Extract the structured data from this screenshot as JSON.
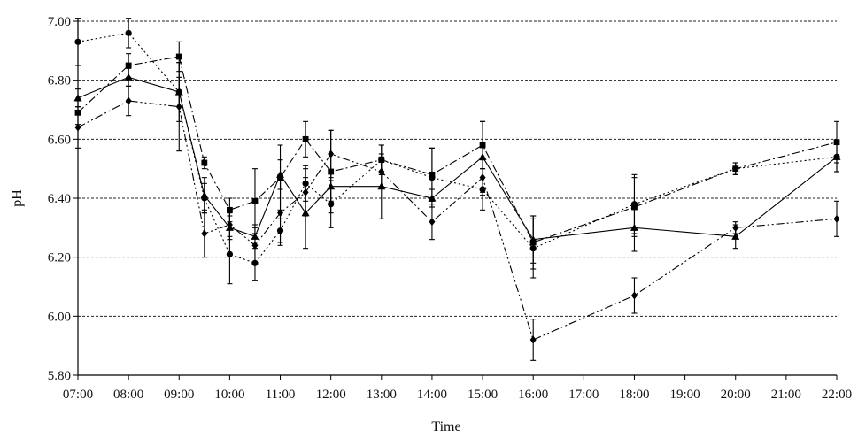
{
  "chart_data": {
    "type": "line",
    "title": "",
    "xlabel": "Time",
    "ylabel": "pH",
    "ylim": [
      5.8,
      7.0
    ],
    "yticks": [
      "5.80",
      "6.00",
      "6.20",
      "6.40",
      "6.60",
      "6.80",
      "7.00"
    ],
    "x_labels": [
      "07:00",
      "08:00",
      "09:00",
      "10:00",
      "11:00",
      "12:00",
      "13:00",
      "14:00",
      "15:00",
      "16:00",
      "17:00",
      "18:00",
      "19:00",
      "20:00",
      "21:00",
      "22:00"
    ],
    "grid": "horizontal dashed",
    "legend": "none",
    "series": [
      {
        "marker": "triangle",
        "line": "solid",
        "x": [
          "07:00",
          "08:00",
          "09:00",
          "09:30",
          "10:00",
          "10:30",
          "11:00",
          "11:30",
          "12:00",
          "13:00",
          "14:00",
          "15:00",
          "16:00",
          "18:00",
          "20:00",
          "22:00"
        ],
        "y": [
          6.74,
          6.81,
          6.76,
          6.41,
          6.3,
          6.27,
          6.48,
          6.35,
          6.44,
          6.44,
          6.4,
          6.54,
          6.26,
          6.3,
          6.27,
          6.54
        ],
        "err": [
          0.03,
          0.03,
          0.05,
          0.06,
          0.04,
          0.04,
          0.05,
          0.12,
          0.05,
          0.11,
          0.03,
          0.12,
          0.08,
          0.08,
          0.04,
          0.05
        ]
      },
      {
        "marker": "circle",
        "line": "dotted",
        "x": [
          "07:00",
          "08:00",
          "09:00",
          "09:30",
          "10:00",
          "10:30",
          "11:00",
          "11:30",
          "12:00",
          "13:00",
          "14:00",
          "15:00",
          "16:00",
          "18:00",
          "20:00",
          "22:00"
        ],
        "y": [
          6.93,
          6.96,
          6.76,
          6.4,
          6.21,
          6.18,
          6.29,
          6.45,
          6.38,
          6.53,
          6.47,
          6.43,
          6.23,
          6.38,
          6.5,
          6.54
        ],
        "err": [
          0.08,
          0.05,
          0.1,
          0.05,
          0.1,
          0.06,
          0.04,
          0.06,
          0.08,
          0.05,
          0.1,
          0.07,
          0.1,
          0.1,
          0.02,
          0.05
        ]
      },
      {
        "marker": "square",
        "line": "dash-dot",
        "x": [
          "07:00",
          "08:00",
          "09:00",
          "09:30",
          "10:00",
          "10:30",
          "11:00",
          "11:30",
          "12:00",
          "13:00",
          "14:00",
          "15:00",
          "16:00",
          "18:00",
          "20:00",
          "22:00"
        ],
        "y": [
          6.69,
          6.85,
          6.88,
          6.52,
          6.36,
          6.39,
          6.47,
          6.6,
          6.49,
          6.53,
          6.48,
          6.58,
          6.25,
          6.37,
          6.5,
          6.59
        ],
        "err": [
          0.04,
          0.04,
          0.05,
          0.02,
          0.04,
          0.11,
          0.11,
          0.06,
          0.14,
          0.05,
          0.09,
          0.08,
          0.09,
          0.1,
          0.02,
          0.07
        ]
      },
      {
        "marker": "diamond",
        "line": "dash-dot-dot",
        "x": [
          "07:00",
          "08:00",
          "09:00",
          "09:30",
          "10:00",
          "10:30",
          "11:00",
          "11:30",
          "12:00",
          "13:00",
          "14:00",
          "15:00",
          "16:00",
          "18:00",
          "20:00",
          "22:00"
        ],
        "y": [
          6.64,
          6.73,
          6.71,
          6.28,
          6.31,
          6.24,
          6.35,
          6.42,
          6.55,
          6.49,
          6.32,
          6.47,
          5.92,
          6.07,
          6.3,
          6.33
        ],
        "err": [
          0.07,
          0.05,
          0.15,
          0.08,
          0.04,
          0.06,
          0.11,
          0.08,
          0.08,
          0.05,
          0.06,
          0.06,
          0.07,
          0.06,
          0.02,
          0.06
        ]
      }
    ]
  }
}
